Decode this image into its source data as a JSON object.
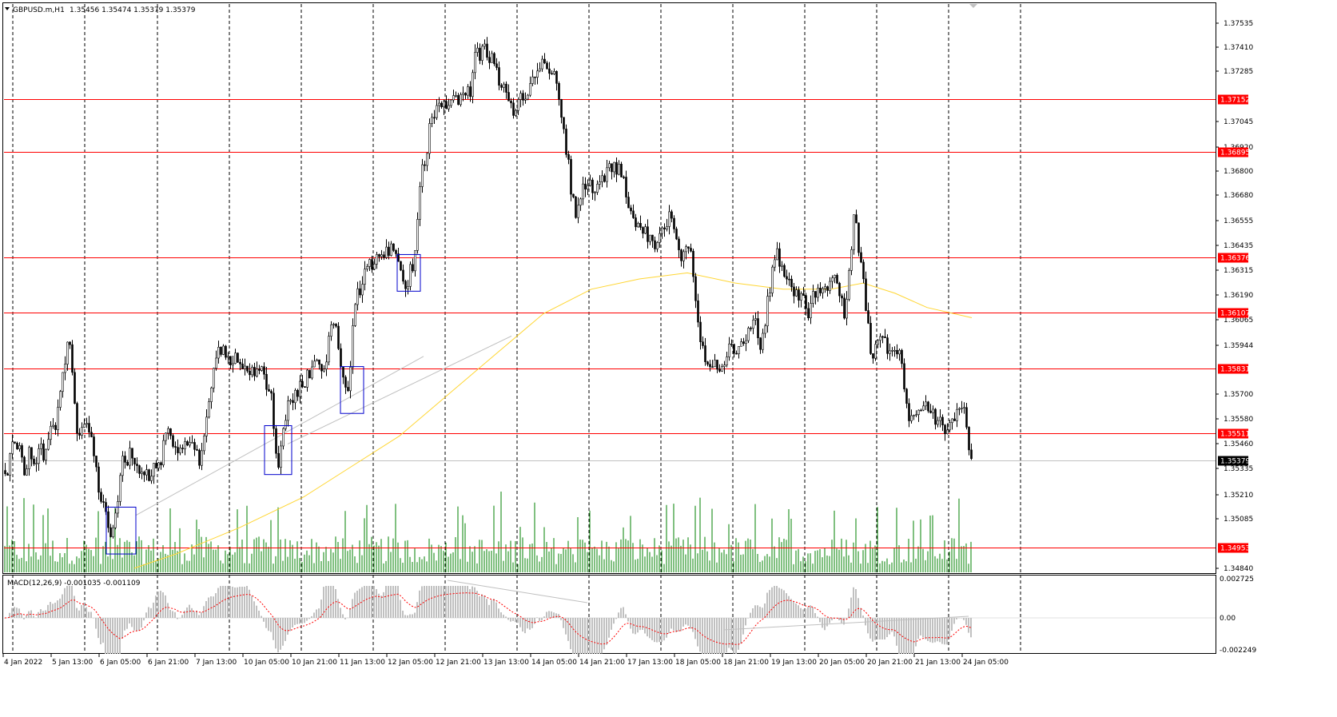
{
  "header": {
    "title": "GBPUSD.m,H1",
    "ohlc": "1.35456 1.35474 1.35379 1.35379"
  },
  "macd_header": {
    "label": "MACD(12,26,9) -0.001035 -0.001109"
  },
  "colors": {
    "grid": "#000000",
    "candle": "#000000",
    "level_line": "#ff0000",
    "level_tag": "#ff0000",
    "ma": "#ffd633",
    "volume": "#008000",
    "macd_hist": "#c0c0c0",
    "macd_signal": "#ff0000",
    "zone_box": "#0000cc",
    "trend_line": "#c0c0c0",
    "current_tag": "#000000"
  },
  "price_axis": {
    "ticks": [
      "1.37535",
      "1.37410",
      "1.37285",
      "1.37045",
      "1.36920",
      "1.36800",
      "1.36680",
      "1.36555",
      "1.36435",
      "1.36315",
      "1.36190",
      "1.36065",
      "1.35944",
      "1.35700",
      "1.35580",
      "1.35460",
      "1.35335",
      "1.35210",
      "1.35085",
      "1.34840"
    ]
  },
  "macd_axis": {
    "ticks": [
      "0.002725",
      "0.00",
      "-0.002249"
    ]
  },
  "time_axis": {
    "labels": [
      "4 Jan 2022",
      "5 Jan 13:00",
      "6 Jan 05:00",
      "6 Jan 21:00",
      "7 Jan 13:00",
      "10 Jan 05:00",
      "10 Jan 21:00",
      "11 Jan 13:00",
      "12 Jan 05:00",
      "12 Jan 21:00",
      "13 Jan 13:00",
      "14 Jan 05:00",
      "14 Jan 21:00",
      "17 Jan 13:00",
      "18 Jan 05:00",
      "18 Jan 21:00",
      "19 Jan 13:00",
      "20 Jan 05:00",
      "20 Jan 21:00",
      "21 Jan 13:00",
      "24 Jan 05:00"
    ]
  },
  "levels": [
    {
      "price": 1.37152,
      "label": "1.37152"
    },
    {
      "price": 1.36895,
      "label": "1.36895"
    },
    {
      "price": 1.36376,
      "label": "1.36376"
    },
    {
      "price": 1.36107,
      "label": "1.36107"
    },
    {
      "price": 1.35831,
      "label": "1.35831"
    },
    {
      "price": 1.35511,
      "label": "1.35511"
    },
    {
      "price": 1.34953,
      "label": "1.34953"
    }
  ],
  "current_price": {
    "price": 1.35379,
    "label": "1.35379"
  },
  "chart_data": {
    "type": "candlestick",
    "symbol": "GBPUSD.m",
    "timeframe": "H1",
    "price_range": [
      1.3483,
      1.3762
    ],
    "close_path": [
      [
        0,
        1.3538
      ],
      [
        8,
        1.353
      ],
      [
        16,
        1.3548
      ],
      [
        24,
        1.3545
      ],
      [
        30,
        1.353
      ],
      [
        38,
        1.3545
      ],
      [
        44,
        1.353
      ],
      [
        50,
        1.3545
      ],
      [
        56,
        1.354
      ],
      [
        62,
        1.3555
      ],
      [
        68,
        1.355
      ],
      [
        74,
        1.357
      ],
      [
        80,
        1.3585
      ],
      [
        84,
        1.3595
      ],
      [
        88,
        1.359
      ],
      [
        92,
        1.357
      ],
      [
        96,
        1.3555
      ],
      [
        100,
        1.3552
      ],
      [
        108,
        1.3555
      ],
      [
        114,
        1.355
      ],
      [
        118,
        1.354
      ],
      [
        122,
        1.353
      ],
      [
        126,
        1.3515
      ],
      [
        130,
        1.352
      ],
      [
        134,
        1.3505
      ],
      [
        138,
        1.35
      ],
      [
        142,
        1.3502
      ],
      [
        146,
        1.3515
      ],
      [
        150,
        1.353
      ],
      [
        154,
        1.354
      ],
      [
        158,
        1.3535
      ],
      [
        162,
        1.3545
      ],
      [
        166,
        1.354
      ],
      [
        170,
        1.3535
      ],
      [
        174,
        1.3532
      ],
      [
        178,
        1.3528
      ],
      [
        182,
        1.3535
      ],
      [
        186,
        1.353
      ],
      [
        190,
        1.3533
      ],
      [
        196,
        1.3535
      ],
      [
        202,
        1.354
      ],
      [
        208,
        1.3552
      ],
      [
        214,
        1.3548
      ],
      [
        220,
        1.3545
      ],
      [
        226,
        1.354
      ],
      [
        232,
        1.3545
      ],
      [
        236,
        1.3548
      ],
      [
        240,
        1.3545
      ],
      [
        246,
        1.354
      ],
      [
        250,
        1.3535
      ],
      [
        254,
        1.3548
      ],
      [
        258,
        1.356
      ],
      [
        262,
        1.357
      ],
      [
        266,
        1.3578
      ],
      [
        270,
        1.3585
      ],
      [
        274,
        1.3592
      ],
      [
        280,
        1.359
      ],
      [
        286,
        1.3585
      ],
      [
        292,
        1.3588
      ],
      [
        298,
        1.359
      ],
      [
        304,
        1.3585
      ],
      [
        310,
        1.358
      ],
      [
        316,
        1.3582
      ],
      [
        322,
        1.3585
      ],
      [
        328,
        1.3582
      ],
      [
        334,
        1.3575
      ],
      [
        340,
        1.357
      ],
      [
        344,
        1.3545
      ],
      [
        348,
        1.3538
      ],
      [
        352,
        1.3545
      ],
      [
        356,
        1.3555
      ],
      [
        360,
        1.3565
      ],
      [
        366,
        1.357
      ],
      [
        372,
        1.3572
      ],
      [
        378,
        1.3575
      ],
      [
        384,
        1.358
      ],
      [
        390,
        1.3582
      ],
      [
        396,
        1.3585
      ],
      [
        402,
        1.3583
      ],
      [
        408,
        1.359
      ],
      [
        412,
        1.36
      ],
      [
        416,
        1.361
      ],
      [
        420,
        1.3605
      ],
      [
        424,
        1.359
      ],
      [
        428,
        1.3578
      ],
      [
        432,
        1.357
      ],
      [
        436,
        1.3575
      ],
      [
        440,
        1.36
      ],
      [
        444,
        1.3615
      ],
      [
        448,
        1.362
      ],
      [
        452,
        1.3625
      ],
      [
        456,
        1.363
      ],
      [
        460,
        1.3632
      ],
      [
        466,
        1.3635
      ],
      [
        472,
        1.3638
      ],
      [
        478,
        1.364
      ],
      [
        484,
        1.3642
      ],
      [
        490,
        1.364
      ],
      [
        496,
        1.3635
      ],
      [
        500,
        1.363
      ],
      [
        504,
        1.3625
      ],
      [
        508,
        1.3622
      ],
      [
        512,
        1.363
      ],
      [
        516,
        1.3635
      ],
      [
        520,
        1.364
      ],
      [
        524,
        1.367
      ],
      [
        528,
        1.368
      ],
      [
        532,
        1.3685
      ],
      [
        536,
        1.37
      ],
      [
        540,
        1.3705
      ],
      [
        546,
        1.371
      ],
      [
        552,
        1.3712
      ],
      [
        558,
        1.371
      ],
      [
        564,
        1.3712
      ],
      [
        570,
        1.3715
      ],
      [
        576,
        1.3718
      ],
      [
        582,
        1.3715
      ],
      [
        588,
        1.372
      ],
      [
        592,
        1.373
      ],
      [
        596,
        1.374
      ],
      [
        600,
        1.3735
      ],
      [
        604,
        1.3742
      ],
      [
        608,
        1.374
      ],
      [
        612,
        1.373
      ],
      [
        616,
        1.3738
      ],
      [
        620,
        1.3735
      ],
      [
        624,
        1.3725
      ],
      [
        628,
        1.372
      ],
      [
        634,
        1.3718
      ],
      [
        640,
        1.371
      ],
      [
        646,
        1.3712
      ],
      [
        652,
        1.3715
      ],
      [
        658,
        1.3718
      ],
      [
        664,
        1.3725
      ],
      [
        670,
        1.373
      ],
      [
        676,
        1.3732
      ],
      [
        682,
        1.3735
      ],
      [
        688,
        1.373
      ],
      [
        694,
        1.3725
      ],
      [
        700,
        1.3715
      ],
      [
        704,
        1.37
      ],
      [
        708,
        1.369
      ],
      [
        712,
        1.368
      ],
      [
        716,
        1.3665
      ],
      [
        720,
        1.366
      ],
      [
        726,
        1.367
      ],
      [
        732,
        1.3675
      ],
      [
        738,
        1.3672
      ],
      [
        744,
        1.367
      ],
      [
        750,
        1.3675
      ],
      [
        756,
        1.3678
      ],
      [
        762,
        1.368
      ],
      [
        768,
        1.3682
      ],
      [
        774,
        1.368
      ],
      [
        780,
        1.3675
      ],
      [
        786,
        1.3665
      ],
      [
        790,
        1.3655
      ],
      [
        796,
        1.365
      ],
      [
        802,
        1.3655
      ],
      [
        808,
        1.365
      ],
      [
        814,
        1.3648
      ],
      [
        820,
        1.3645
      ],
      [
        826,
        1.3648
      ],
      [
        832,
        1.365
      ],
      [
        836,
        1.3655
      ],
      [
        840,
        1.366
      ],
      [
        844,
        1.365
      ],
      [
        848,
        1.364
      ],
      [
        852,
        1.3635
      ],
      [
        856,
        1.364
      ],
      [
        860,
        1.3645
      ],
      [
        866,
        1.3635
      ],
      [
        870,
        1.362
      ],
      [
        874,
        1.3605
      ],
      [
        878,
        1.3595
      ],
      [
        882,
        1.359
      ],
      [
        886,
        1.3585
      ],
      [
        890,
        1.358
      ],
      [
        896,
        1.3585
      ],
      [
        900,
        1.358
      ],
      [
        904,
        1.3585
      ],
      [
        908,
        1.359
      ],
      [
        914,
        1.3595
      ],
      [
        920,
        1.3592
      ],
      [
        926,
        1.3595
      ],
      [
        932,
        1.3598
      ],
      [
        938,
        1.36
      ],
      [
        944,
        1.3605
      ],
      [
        948,
        1.36
      ],
      [
        952,
        1.3595
      ],
      [
        956,
        1.36
      ],
      [
        960,
        1.3615
      ],
      [
        964,
        1.3625
      ],
      [
        968,
        1.3635
      ],
      [
        972,
        1.364
      ],
      [
        976,
        1.3635
      ],
      [
        982,
        1.363
      ],
      [
        988,
        1.3625
      ],
      [
        994,
        1.362
      ],
      [
        1000,
        1.3618
      ],
      [
        1006,
        1.3615
      ],
      [
        1010,
        1.361
      ],
      [
        1014,
        1.3615
      ],
      [
        1018,
        1.362
      ],
      [
        1024,
        1.3625
      ],
      [
        1030,
        1.3622
      ],
      [
        1036,
        1.3625
      ],
      [
        1042,
        1.3628
      ],
      [
        1048,
        1.3625
      ],
      [
        1052,
        1.3615
      ],
      [
        1056,
        1.361
      ],
      [
        1060,
        1.362
      ],
      [
        1064,
        1.364
      ],
      [
        1068,
        1.3655
      ],
      [
        1072,
        1.365
      ],
      [
        1076,
        1.3635
      ],
      [
        1080,
        1.3625
      ],
      [
        1084,
        1.361
      ],
      [
        1088,
        1.3595
      ],
      [
        1092,
        1.359
      ],
      [
        1096,
        1.3595
      ],
      [
        1102,
        1.3598
      ],
      [
        1108,
        1.3595
      ],
      [
        1114,
        1.359
      ],
      [
        1120,
        1.3592
      ],
      [
        1126,
        1.359
      ],
      [
        1130,
        1.3575
      ],
      [
        1134,
        1.3565
      ],
      [
        1138,
        1.356
      ],
      [
        1144,
        1.3562
      ],
      [
        1150,
        1.3565
      ],
      [
        1156,
        1.3567
      ],
      [
        1162,
        1.3565
      ],
      [
        1168,
        1.356
      ],
      [
        1174,
        1.3558
      ],
      [
        1180,
        1.3555
      ],
      [
        1186,
        1.3553
      ],
      [
        1192,
        1.3555
      ],
      [
        1198,
        1.356
      ],
      [
        1204,
        1.3562
      ],
      [
        1208,
        1.3558
      ],
      [
        1212,
        1.3545
      ],
      [
        1216,
        1.35379
      ]
    ],
    "ma_path": [
      [
        168,
        1.3485
      ],
      [
        220,
        1.3492
      ],
      [
        300,
        1.3505
      ],
      [
        380,
        1.352
      ],
      [
        440,
        1.3535
      ],
      [
        500,
        1.355
      ],
      [
        560,
        1.357
      ],
      [
        620,
        1.359
      ],
      [
        680,
        1.361
      ],
      [
        740,
        1.3622
      ],
      [
        800,
        1.3627
      ],
      [
        860,
        1.363
      ],
      [
        920,
        1.3625
      ],
      [
        980,
        1.3622
      ],
      [
        1040,
        1.3622
      ],
      [
        1080,
        1.3625
      ],
      [
        1120,
        1.362
      ],
      [
        1160,
        1.3613
      ],
      [
        1216,
        1.3608
      ]
    ],
    "zones": [
      {
        "x0": 133,
        "x1": 170,
        "hi": 1.3515,
        "lo": 1.3492
      },
      {
        "x0": 331,
        "x1": 365,
        "hi": 1.3555,
        "lo": 1.3531
      },
      {
        "x0": 426,
        "x1": 455,
        "hi": 1.3584,
        "lo": 1.3561
      },
      {
        "x0": 497,
        "x1": 526,
        "hi": 1.3639,
        "lo": 1.3621
      }
    ],
    "trendlines": [
      {
        "x0": 170,
        "p0": 1.3511,
        "x1": 530,
        "p1": 1.3589
      },
      {
        "x0": 360,
        "p0": 1.3546,
        "x1": 640,
        "p1": 1.3599
      }
    ]
  }
}
